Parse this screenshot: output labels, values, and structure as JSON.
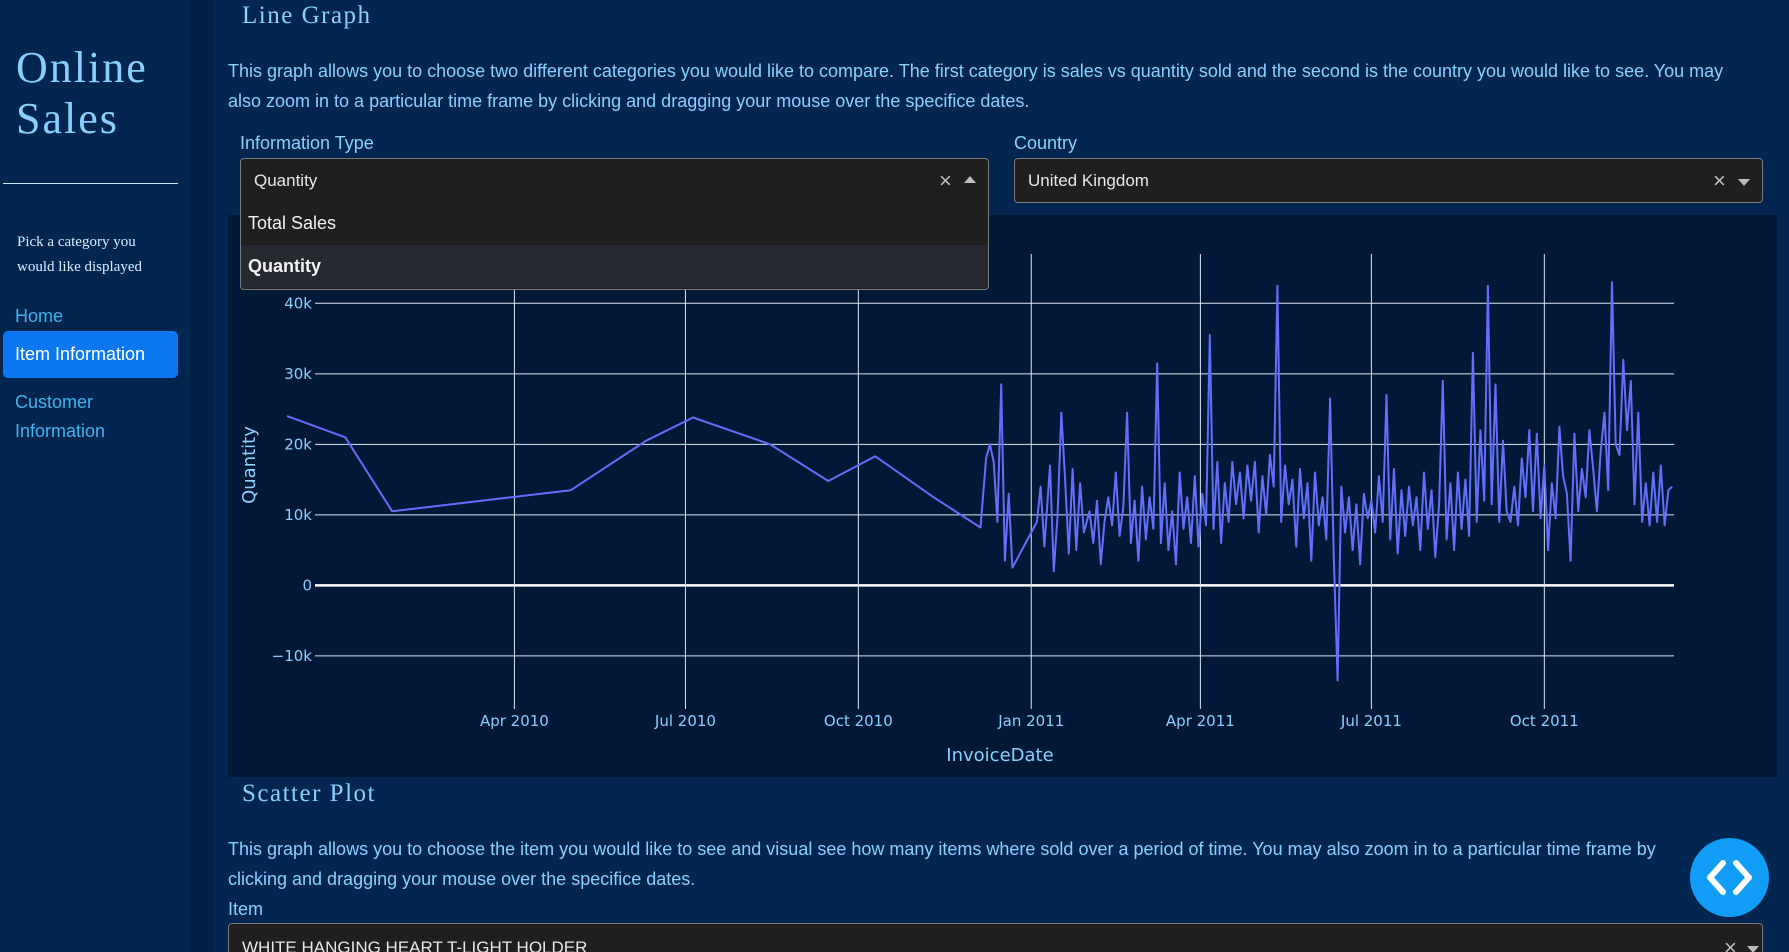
{
  "sidebar": {
    "title_line1": "Online",
    "title_line2": "Sales",
    "description": "Pick a category you would like displayed",
    "nav": [
      {
        "label": "Home",
        "active": false
      },
      {
        "label": "Item Information",
        "active": true
      },
      {
        "label": "Customer Information",
        "active": false
      }
    ]
  },
  "line_section": {
    "heading": "Line Graph",
    "description": "This graph allows you to choose two different categories you would like to compare. The first category is sales vs quantity sold and the second is the country you would like to see. You may also zoom in to a particular time frame by clicking and dragging your mouse over the specifice dates.",
    "info_type": {
      "label": "Information Type",
      "value": "Quantity",
      "options": [
        "Total Sales",
        "Quantity"
      ],
      "selected_option": "Quantity",
      "open": true
    },
    "country": {
      "label": "Country",
      "value": "United Kingdom"
    }
  },
  "chart_data": {
    "type": "line",
    "xlabel": "InvoiceDate",
    "ylabel": "Quantity",
    "x_ticks": [
      "Apr 2010",
      "Jul 2010",
      "Oct 2010",
      "Jan 2011",
      "Apr 2011",
      "Jul 2011",
      "Oct 2011"
    ],
    "y_ticks": [
      "−10k",
      "0",
      "10k",
      "20k",
      "30k",
      "40k"
    ],
    "ylim": [
      -13000,
      46000
    ],
    "x_range": [
      "2009-12-01",
      "2011-12-09"
    ],
    "grid": true,
    "series": [
      {
        "color": "#636efa",
        "points": [
          [
            "2009-12-01",
            24000
          ],
          [
            "2010-01-01",
            21000
          ],
          [
            "2010-01-26",
            10500
          ],
          [
            "2010-05-01",
            13500
          ],
          [
            "2010-06-10",
            20500
          ],
          [
            "2010-07-05",
            23800
          ],
          [
            "2010-08-15",
            20000
          ],
          [
            "2010-09-15",
            14800
          ],
          [
            "2010-10-10",
            18300
          ],
          [
            "2010-11-10",
            12500
          ],
          [
            "2010-12-05",
            8200
          ],
          [
            "2010-12-08",
            18000
          ],
          [
            "2010-12-10",
            20000
          ],
          [
            "2010-12-12",
            17500
          ],
          [
            "2010-12-14",
            9000
          ],
          [
            "2010-12-16",
            28500
          ],
          [
            "2010-12-18",
            3500
          ],
          [
            "2010-12-20",
            13000
          ],
          [
            "2010-12-22",
            2500
          ],
          [
            "2011-01-04",
            9000
          ],
          [
            "2011-01-06",
            14000
          ],
          [
            "2011-01-08",
            5500
          ],
          [
            "2011-01-11",
            17000
          ],
          [
            "2011-01-13",
            2000
          ],
          [
            "2011-01-15",
            10000
          ],
          [
            "2011-01-17",
            24500
          ],
          [
            "2011-01-19",
            15000
          ],
          [
            "2011-01-21",
            4500
          ],
          [
            "2011-01-23",
            16500
          ],
          [
            "2011-01-25",
            5000
          ],
          [
            "2011-01-27",
            14500
          ],
          [
            "2011-01-29",
            7500
          ],
          [
            "2011-02-01",
            10500
          ],
          [
            "2011-02-03",
            6000
          ],
          [
            "2011-02-05",
            12000
          ],
          [
            "2011-02-07",
            3000
          ],
          [
            "2011-02-09",
            9000
          ],
          [
            "2011-02-11",
            12500
          ],
          [
            "2011-02-13",
            8500
          ],
          [
            "2011-02-15",
            16000
          ],
          [
            "2011-02-17",
            7000
          ],
          [
            "2011-02-19",
            11000
          ],
          [
            "2011-02-21",
            24500
          ],
          [
            "2011-02-23",
            6000
          ],
          [
            "2011-02-25",
            12000
          ],
          [
            "2011-02-27",
            3500
          ],
          [
            "2011-03-01",
            14000
          ],
          [
            "2011-03-03",
            6500
          ],
          [
            "2011-03-05",
            12500
          ],
          [
            "2011-03-07",
            8000
          ],
          [
            "2011-03-09",
            31500
          ],
          [
            "2011-03-11",
            6000
          ],
          [
            "2011-03-13",
            14500
          ],
          [
            "2011-03-15",
            5000
          ],
          [
            "2011-03-17",
            10500
          ],
          [
            "2011-03-19",
            3000
          ],
          [
            "2011-03-21",
            16000
          ],
          [
            "2011-03-23",
            8000
          ],
          [
            "2011-03-25",
            12500
          ],
          [
            "2011-03-27",
            6000
          ],
          [
            "2011-03-29",
            15500
          ],
          [
            "2011-03-31",
            5500
          ],
          [
            "2011-04-02",
            13000
          ],
          [
            "2011-04-04",
            8500
          ],
          [
            "2011-04-06",
            35500
          ],
          [
            "2011-04-08",
            8000
          ],
          [
            "2011-04-10",
            17500
          ],
          [
            "2011-04-12",
            6000
          ],
          [
            "2011-04-14",
            14500
          ],
          [
            "2011-04-16",
            9000
          ],
          [
            "2011-04-18",
            17500
          ],
          [
            "2011-04-20",
            11500
          ],
          [
            "2011-04-22",
            16000
          ],
          [
            "2011-04-24",
            9500
          ],
          [
            "2011-04-26",
            17000
          ],
          [
            "2011-04-28",
            12000
          ],
          [
            "2011-04-30",
            17500
          ],
          [
            "2011-05-02",
            7500
          ],
          [
            "2011-05-04",
            15500
          ],
          [
            "2011-05-06",
            10000
          ],
          [
            "2011-05-08",
            18500
          ],
          [
            "2011-05-10",
            14000
          ],
          [
            "2011-05-12",
            42500
          ],
          [
            "2011-05-14",
            9000
          ],
          [
            "2011-05-16",
            17000
          ],
          [
            "2011-05-18",
            11500
          ],
          [
            "2011-05-20",
            15000
          ],
          [
            "2011-05-22",
            5500
          ],
          [
            "2011-05-24",
            16500
          ],
          [
            "2011-05-26",
            9500
          ],
          [
            "2011-05-28",
            14500
          ],
          [
            "2011-05-30",
            3500
          ],
          [
            "2011-06-01",
            16000
          ],
          [
            "2011-06-03",
            8500
          ],
          [
            "2011-06-05",
            12500
          ],
          [
            "2011-06-07",
            6500
          ],
          [
            "2011-06-09",
            26500
          ],
          [
            "2011-06-11",
            4000
          ],
          [
            "2011-06-13",
            -13500
          ],
          [
            "2011-06-15",
            14000
          ],
          [
            "2011-06-17",
            7500
          ],
          [
            "2011-06-19",
            12500
          ],
          [
            "2011-06-21",
            5000
          ],
          [
            "2011-06-23",
            11500
          ],
          [
            "2011-06-25",
            3000
          ],
          [
            "2011-06-27",
            13000
          ],
          [
            "2011-06-29",
            9500
          ],
          [
            "2011-07-01",
            12000
          ],
          [
            "2011-07-03",
            7500
          ],
          [
            "2011-07-05",
            15500
          ],
          [
            "2011-07-07",
            9000
          ],
          [
            "2011-07-09",
            27000
          ],
          [
            "2011-07-11",
            6500
          ],
          [
            "2011-07-13",
            16500
          ],
          [
            "2011-07-15",
            4500
          ],
          [
            "2011-07-17",
            13500
          ],
          [
            "2011-07-19",
            7000
          ],
          [
            "2011-07-21",
            14000
          ],
          [
            "2011-07-23",
            8500
          ],
          [
            "2011-07-25",
            12500
          ],
          [
            "2011-07-27",
            5000
          ],
          [
            "2011-07-29",
            16000
          ],
          [
            "2011-07-31",
            8000
          ],
          [
            "2011-08-02",
            13500
          ],
          [
            "2011-08-04",
            4000
          ],
          [
            "2011-08-06",
            11500
          ],
          [
            "2011-08-08",
            29000
          ],
          [
            "2011-08-10",
            6500
          ],
          [
            "2011-08-12",
            14500
          ],
          [
            "2011-08-14",
            5000
          ],
          [
            "2011-08-16",
            16000
          ],
          [
            "2011-08-18",
            8000
          ],
          [
            "2011-08-20",
            15000
          ],
          [
            "2011-08-22",
            7000
          ],
          [
            "2011-08-24",
            33000
          ],
          [
            "2011-08-26",
            9000
          ],
          [
            "2011-08-28",
            22000
          ],
          [
            "2011-08-30",
            12000
          ],
          [
            "2011-09-01",
            42500
          ],
          [
            "2011-09-03",
            11500
          ],
          [
            "2011-09-05",
            28500
          ],
          [
            "2011-09-07",
            9000
          ],
          [
            "2011-09-09",
            20500
          ],
          [
            "2011-09-11",
            10500
          ],
          [
            "2011-09-13",
            9000
          ],
          [
            "2011-09-15",
            14000
          ],
          [
            "2011-09-17",
            8500
          ],
          [
            "2011-09-19",
            18000
          ],
          [
            "2011-09-21",
            12500
          ],
          [
            "2011-09-23",
            22000
          ],
          [
            "2011-09-25",
            10500
          ],
          [
            "2011-09-27",
            21500
          ],
          [
            "2011-09-29",
            9500
          ],
          [
            "2011-10-01",
            17000
          ],
          [
            "2011-10-03",
            5000
          ],
          [
            "2011-10-05",
            14500
          ],
          [
            "2011-10-07",
            9500
          ],
          [
            "2011-10-09",
            22500
          ],
          [
            "2011-10-11",
            15500
          ],
          [
            "2011-10-13",
            13000
          ],
          [
            "2011-10-15",
            3500
          ],
          [
            "2011-10-17",
            21500
          ],
          [
            "2011-10-19",
            10500
          ],
          [
            "2011-10-21",
            16500
          ],
          [
            "2011-10-23",
            12500
          ],
          [
            "2011-10-25",
            22000
          ],
          [
            "2011-10-27",
            16500
          ],
          [
            "2011-10-29",
            10500
          ],
          [
            "2011-10-31",
            19000
          ],
          [
            "2011-11-02",
            24500
          ],
          [
            "2011-11-04",
            13500
          ],
          [
            "2011-11-06",
            43000
          ],
          [
            "2011-11-08",
            20000
          ],
          [
            "2011-11-10",
            18500
          ],
          [
            "2011-11-12",
            32000
          ],
          [
            "2011-11-14",
            22000
          ],
          [
            "2011-11-16",
            29000
          ],
          [
            "2011-11-18",
            11500
          ],
          [
            "2011-11-20",
            24500
          ],
          [
            "2011-11-22",
            9000
          ],
          [
            "2011-11-24",
            14500
          ],
          [
            "2011-11-26",
            8500
          ],
          [
            "2011-11-28",
            16000
          ],
          [
            "2011-11-30",
            9000
          ],
          [
            "2011-12-02",
            17000
          ],
          [
            "2011-12-04",
            8500
          ],
          [
            "2011-12-06",
            13500
          ],
          [
            "2011-12-08",
            14000
          ]
        ]
      }
    ]
  },
  "scatter_section": {
    "heading": "Scatter Plot",
    "description": "This graph allows you to choose the item you would like to see and visual see how many items where sold over a period of time. You may also zoom in to a particular time frame by clicking and dragging your mouse over the specifice dates.",
    "item_label": "Item",
    "item_value": "WHITE HANGING HEART T-LIGHT HOLDER"
  },
  "icons": {
    "clear": "clear-x-icon",
    "caret_down": "chevron-down-icon",
    "caret_up": "chevron-up-icon",
    "fab": "code-brackets-icon"
  },
  "colors": {
    "background": "#032651",
    "accent": "#0b78f2",
    "text": "#8ad0ff",
    "line": "#636efa",
    "fab": "#119df6"
  }
}
